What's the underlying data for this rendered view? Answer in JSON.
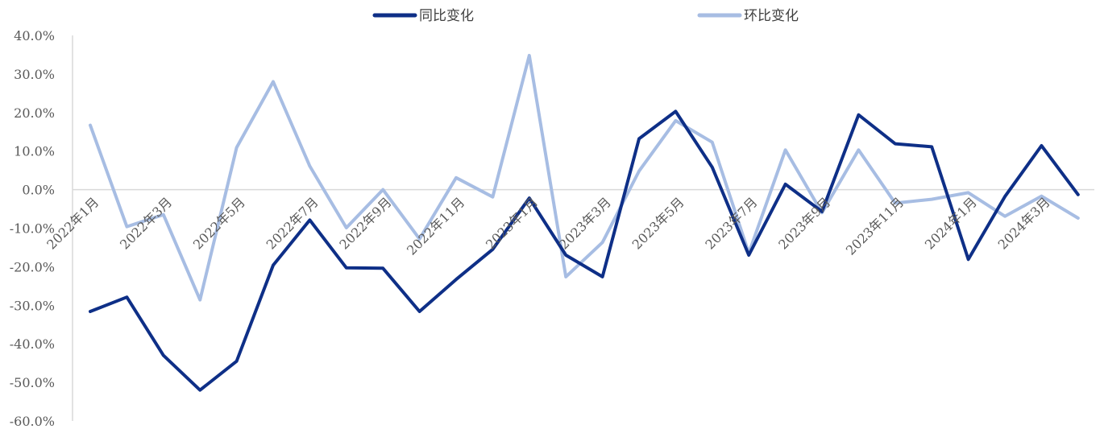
{
  "chart_data": {
    "type": "line",
    "title": "",
    "xlabel": "",
    "ylabel": "",
    "ylim": [
      -60,
      40
    ],
    "y_ticks": [
      "40.0%",
      "30.0%",
      "20.0%",
      "10.0%",
      "0.0%",
      "-10.0%",
      "-20.0%",
      "-30.0%",
      "-40.0%",
      "-50.0%",
      "-60.0%"
    ],
    "y_tick_values": [
      40,
      30,
      20,
      10,
      0,
      -10,
      -20,
      -30,
      -40,
      -50,
      -60
    ],
    "x_tick_labels": [
      "2022年1月",
      "2022年3月",
      "2022年5月",
      "2022年7月",
      "2022年9月",
      "2022年11月",
      "2023年1月",
      "2023年3月",
      "2023年5月",
      "2023年7月",
      "2023年9月",
      "2023年11月",
      "2024年1月",
      "2024年3月"
    ],
    "categories": [
      "2022年1月",
      "2022年2月",
      "2022年3月",
      "2022年4月",
      "2022年5月",
      "2022年6月",
      "2022年7月",
      "2022年8月",
      "2022年9月",
      "2022年10月",
      "2022年11月",
      "2022年12月",
      "2023年1月",
      "2023年2月",
      "2023年3月",
      "2023年4月",
      "2023年5月",
      "2023年6月",
      "2023年7月",
      "2023年8月",
      "2023年9月",
      "2023年10月",
      "2023年11月",
      "2023年12月",
      "2024年1月",
      "2024年2月",
      "2024年3月",
      "2024年4月"
    ],
    "grid": false,
    "legend_position": "top",
    "series": [
      {
        "name": "同比变化",
        "color": "#0e2f87",
        "values": [
          -31.6,
          -27.9,
          -43.0,
          -52.0,
          -44.5,
          -19.6,
          -7.9,
          -20.3,
          -20.4,
          -31.6,
          -23.3,
          -15.5,
          -2.2,
          -17.0,
          -22.6,
          13.2,
          20.3,
          5.8,
          -17.0,
          1.4,
          -5.7,
          19.4,
          11.9,
          11.1,
          -18.1,
          -1.8,
          11.4,
          -1.3
        ]
      },
      {
        "name": "环比变化",
        "color": "#a7bde3",
        "values": [
          16.7,
          -9.6,
          -6.5,
          -28.6,
          10.9,
          28.0,
          6.1,
          -9.9,
          0.0,
          -12.8,
          3.1,
          -1.9,
          34.8,
          -22.6,
          -13.7,
          4.8,
          17.9,
          12.3,
          -16.5,
          10.3,
          -6.0,
          10.3,
          -3.5,
          -2.5,
          -0.8,
          -6.9,
          -1.7,
          -7.4
        ]
      }
    ]
  }
}
